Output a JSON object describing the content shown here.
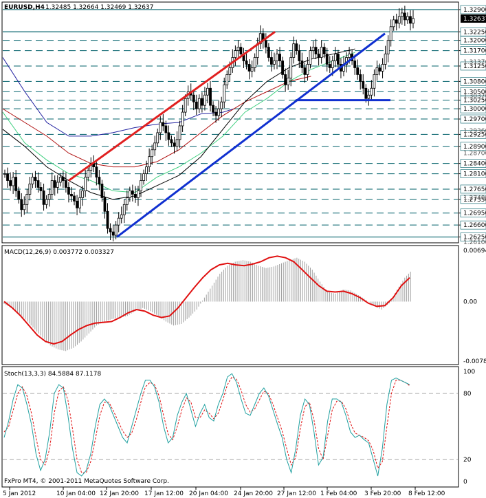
{
  "main_header": {
    "symbol": "EURUSD,H4",
    "ohlc": "1.32485 1.32664 1.32469 1.32637"
  },
  "macd_header": "MACD(12,26,9) 0.003772 0.003327",
  "stoch_header": "Stoch(13,3,3) 84.5884 87.1178",
  "watermark": "FxPro MT4, © 2001-2011 MetaQuotes Software Corp.",
  "colors": {
    "candles": "#000000",
    "level_lines": "#00606a",
    "red_trend": "#e02020",
    "blue_trend": "#1030d0",
    "ma_blue": "#2020a0",
    "ma_red": "#b01010",
    "ma_green": "#40d080",
    "ma_black": "#000000",
    "macd_signal": "#e01010",
    "macd_hist": "#a0a0a0",
    "stoch_main": "#20a0a0",
    "stoch_signal": "#e01010"
  },
  "chart_data": [
    {
      "type": "candlestick",
      "symbol": "EURUSD",
      "timeframe": "H4",
      "ylim": [
        1.261,
        1.331
      ],
      "y_ticks": [
        "1.32900",
        "1.32637",
        "1.32250",
        "1.32000",
        "1.31700",
        "1.31250",
        "1.30800",
        "1.30500",
        "1.30250",
        "1.30000",
        "1.29700",
        "1.29250",
        "1.28900",
        "1.28400",
        "1.28100",
        "1.27650",
        "1.27350",
        "1.26950",
        "1.26600",
        "1.26250"
      ],
      "y_ticks_faint": [
        "1.31370",
        "1.30370",
        "1.29360",
        "1.28700",
        "1.27400",
        "1.26100"
      ],
      "current_price": "1.32637",
      "horizontal_levels": [
        1.329,
        1.3225,
        1.32,
        1.317,
        1.3125,
        1.308,
        1.305,
        1.3025,
        1.3,
        1.297,
        1.2925,
        1.289,
        1.284,
        1.281,
        1.2765,
        1.2735,
        1.2695,
        1.266,
        1.2625
      ],
      "x_ticks": [
        "5 Jan 2012",
        "10 Jan 04:00",
        "12 Jan 20:00",
        "17 Jan 12:00",
        "20 Jan 04:00",
        "24 Jan 20:00",
        "27 Jan 12:00",
        "1 Feb 04:00",
        "3 Feb 20:00",
        "8 Feb 12:00"
      ],
      "closes": [
        1.281,
        1.279,
        1.2775,
        1.28,
        1.276,
        1.2735,
        1.2705,
        1.272,
        1.275,
        1.278,
        1.28,
        1.279,
        1.277,
        1.276,
        1.272,
        1.2735,
        1.275,
        1.279,
        1.277,
        1.2785,
        1.28,
        1.279,
        1.277,
        1.275,
        1.2745,
        1.273,
        1.271,
        1.274,
        1.276,
        1.28,
        1.282,
        1.284,
        1.283,
        1.28,
        1.278,
        1.274,
        1.27,
        1.265,
        1.264,
        1.263,
        1.266,
        1.268,
        1.269,
        1.272,
        1.274,
        1.276,
        1.275,
        1.274,
        1.276,
        1.279,
        1.281,
        1.283,
        1.286,
        1.288,
        1.29,
        1.293,
        1.296,
        1.295,
        1.293,
        1.291,
        1.29,
        1.289,
        1.291,
        1.295,
        1.299,
        1.303,
        1.305,
        1.304,
        1.302,
        1.3,
        1.303,
        1.301,
        1.304,
        1.306,
        1.301,
        1.299,
        1.298,
        1.3,
        1.302,
        1.307,
        1.31,
        1.312,
        1.315,
        1.317,
        1.318,
        1.316,
        1.314,
        1.313,
        1.311,
        1.312,
        1.315,
        1.319,
        1.322,
        1.32,
        1.318,
        1.315,
        1.313,
        1.314,
        1.316,
        1.314,
        1.31,
        1.307,
        1.309,
        1.315,
        1.319,
        1.317,
        1.314,
        1.312,
        1.31,
        1.313,
        1.317,
        1.318,
        1.316,
        1.315,
        1.318,
        1.316,
        1.313,
        1.312,
        1.314,
        1.316,
        1.313,
        1.311,
        1.313,
        1.315,
        1.316,
        1.314,
        1.312,
        1.31,
        1.308,
        1.306,
        1.303,
        1.304,
        1.306,
        1.31,
        1.312,
        1.311,
        1.313,
        1.316,
        1.32,
        1.324,
        1.326,
        1.325,
        1.327,
        1.328,
        1.326,
        1.327,
        1.325,
        1.3264
      ],
      "ma_blue": [
        [
          0,
          1.315
        ],
        [
          30,
          1.305
        ],
        [
          60,
          1.296
        ],
        [
          90,
          1.292
        ],
        [
          120,
          1.292
        ],
        [
          150,
          1.293
        ],
        [
          180,
          1.2945
        ],
        [
          210,
          1.2955
        ],
        [
          240,
          1.296
        ],
        [
          270,
          1.2985
        ],
        [
          300,
          1.299
        ],
        [
          315,
          1.3
        ]
      ],
      "ma_red": [
        [
          0,
          1.3
        ],
        [
          30,
          1.296
        ],
        [
          60,
          1.292
        ],
        [
          90,
          1.287
        ],
        [
          120,
          1.284
        ],
        [
          150,
          1.283
        ],
        [
          180,
          1.283
        ],
        [
          210,
          1.2845
        ],
        [
          240,
          1.288
        ],
        [
          270,
          1.293
        ],
        [
          300,
          1.298
        ],
        [
          330,
          1.302
        ],
        [
          360,
          1.305
        ],
        [
          390,
          1.308
        ],
        [
          420,
          1.3095
        ]
      ],
      "ma_green": [
        [
          0,
          1.299
        ],
        [
          30,
          1.29
        ],
        [
          60,
          1.285
        ],
        [
          90,
          1.281
        ],
        [
          120,
          1.279
        ],
        [
          150,
          1.276
        ],
        [
          180,
          1.2755
        ],
        [
          210,
          1.28
        ],
        [
          240,
          1.283
        ],
        [
          270,
          1.287
        ],
        [
          300,
          1.292
        ],
        [
          330,
          1.299
        ],
        [
          360,
          1.303
        ],
        [
          390,
          1.308
        ],
        [
          420,
          1.3115
        ],
        [
          450,
          1.314
        ],
        [
          480,
          1.3165
        ]
      ],
      "ma_black": [
        [
          0,
          1.294
        ],
        [
          30,
          1.289
        ],
        [
          60,
          1.283
        ],
        [
          90,
          1.279
        ],
        [
          120,
          1.2755
        ],
        [
          150,
          1.2735
        ],
        [
          180,
          1.2745
        ],
        [
          210,
          1.2775
        ],
        [
          240,
          1.2805
        ],
        [
          270,
          1.286
        ],
        [
          300,
          1.294
        ],
        [
          330,
          1.302
        ],
        [
          360,
          1.308
        ],
        [
          390,
          1.312
        ],
        [
          420,
          1.3145
        ],
        [
          450,
          1.316
        ],
        [
          480,
          1.3175
        ]
      ],
      "trendlines": [
        {
          "name": "red",
          "from": [
            "10 Jan 04:00",
            1.279
          ],
          "to": [
            "27 Jan 12:00",
            1.322
          ]
        },
        {
          "name": "blue-long",
          "from": [
            "12 Jan 20:00",
            1.2625
          ],
          "to": [
            "3 Feb 20:00",
            1.322
          ]
        },
        {
          "name": "blue-flat",
          "level": 1.3025
        }
      ]
    },
    {
      "type": "line",
      "name": "MACD(12,26,9)",
      "ylim": [
        -0.00781,
        0.00694
      ],
      "y_ticks": [
        "0.00694",
        "0.00",
        "-0.00781"
      ],
      "macd_hist": [
        -0.0003,
        -0.0008,
        -0.0015,
        -0.0025,
        -0.0035,
        -0.0045,
        -0.0055,
        -0.006,
        -0.0062,
        -0.0058,
        -0.005,
        -0.004,
        -0.003,
        -0.0025,
        -0.0022,
        -0.002,
        -0.0018,
        -0.0012,
        -0.0008,
        -0.0012,
        -0.0018,
        -0.0025,
        -0.003,
        -0.0028,
        -0.002,
        -0.001,
        0.0005,
        0.002,
        0.0035,
        0.0045,
        0.005,
        0.0052,
        0.005,
        0.0045,
        0.0042,
        0.0044,
        0.0048,
        0.0052,
        0.0055,
        0.005,
        0.004,
        0.0025,
        0.0012,
        0.001,
        0.0015,
        0.0014,
        0.0008,
        0.0002,
        -0.0005,
        -0.001,
        -0.0002,
        0.0015,
        0.003,
        0.004
      ],
      "signal": [
        0.0,
        -0.0008,
        -0.0018,
        -0.003,
        -0.0042,
        -0.005,
        -0.0053,
        -0.005,
        -0.0042,
        -0.0035,
        -0.003,
        -0.0027,
        -0.0026,
        -0.0025,
        -0.002,
        -0.0014,
        -0.001,
        -0.0012,
        -0.0017,
        -0.002,
        -0.0018,
        -0.0008,
        0.0005,
        0.0018,
        0.003,
        0.004,
        0.0046,
        0.0048,
        0.0046,
        0.0045,
        0.0047,
        0.005,
        0.0055,
        0.0057,
        0.0055,
        0.005,
        0.004,
        0.003,
        0.002,
        0.0013,
        0.0012,
        0.0013,
        0.001,
        0.0005,
        -0.0002,
        -0.0006,
        -0.0005,
        0.0005,
        0.002,
        0.003
      ]
    },
    {
      "type": "line",
      "name": "Stoch(13,3,3)",
      "ylim": [
        0,
        100
      ],
      "y_ticks": [
        "100",
        "80",
        "20",
        "0"
      ],
      "main": [
        40,
        55,
        75,
        88,
        85,
        70,
        52,
        25,
        10,
        20,
        45,
        80,
        88,
        85,
        60,
        30,
        8,
        5,
        10,
        25,
        50,
        70,
        75,
        70,
        60,
        50,
        40,
        35,
        50,
        65,
        80,
        92,
        92,
        86,
        72,
        50,
        35,
        40,
        60,
        72,
        80,
        65,
        50,
        62,
        70,
        58,
        55,
        70,
        80,
        95,
        98,
        90,
        75,
        62,
        60,
        70,
        80,
        85,
        78,
        65,
        52,
        40,
        20,
        8,
        30,
        60,
        75,
        70,
        45,
        15,
        22,
        55,
        75,
        75,
        72,
        60,
        45,
        40,
        42,
        38,
        35,
        20,
        5,
        30,
        70,
        92,
        94,
        92,
        90,
        88
      ],
      "signal": [
        45,
        50,
        65,
        80,
        86,
        78,
        62,
        40,
        20,
        15,
        30,
        62,
        82,
        86,
        74,
        48,
        20,
        8,
        8,
        18,
        38,
        60,
        72,
        72,
        64,
        55,
        46,
        40,
        44,
        56,
        72,
        86,
        90,
        88,
        78,
        60,
        43,
        38,
        50,
        65,
        76,
        72,
        58,
        58,
        65,
        62,
        57,
        62,
        74,
        88,
        95,
        93,
        83,
        70,
        63,
        66,
        74,
        82,
        80,
        70,
        58,
        46,
        30,
        15,
        22,
        48,
        68,
        72,
        56,
        30,
        20,
        42,
        65,
        73,
        73,
        66,
        53,
        44,
        42,
        40,
        37,
        28,
        12,
        18,
        50,
        80,
        92,
        92,
        90,
        87
      ]
    }
  ]
}
